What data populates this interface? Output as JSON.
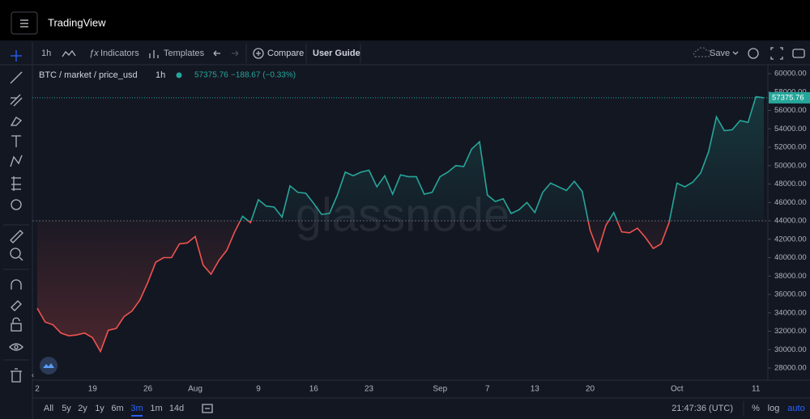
{
  "header": {
    "title": "TradingView"
  },
  "toolbar": {
    "interval": "1h",
    "indicators": "Indicators",
    "templates": "Templates",
    "compare": "Compare",
    "guide": "User Guide",
    "save": "Save"
  },
  "legend": {
    "symbol": "BTC / market / price_usd",
    "interval": "1h",
    "change": "−188.67 (−0.33%)"
  },
  "chart_data": {
    "type": "line",
    "watermark": "glassnode",
    "categories": [
      "2",
      null,
      null,
      null,
      null,
      null,
      null,
      "19",
      null,
      null,
      null,
      null,
      null,
      null,
      "26",
      null,
      null,
      null,
      null,
      null,
      "Aug",
      null,
      null,
      null,
      null,
      null,
      null,
      null,
      "9",
      null,
      null,
      null,
      null,
      null,
      null,
      "16",
      null,
      null,
      null,
      null,
      null,
      null,
      "23",
      null,
      null,
      null,
      null,
      null,
      null,
      null,
      null,
      "Sep",
      null,
      null,
      null,
      null,
      null,
      "7",
      null,
      null,
      null,
      null,
      null,
      "13",
      null,
      null,
      null,
      null,
      null,
      null,
      "20",
      null,
      null,
      null,
      null,
      null,
      null,
      null,
      null,
      null,
      null,
      "Oct",
      null,
      null,
      null,
      null,
      null,
      null,
      null,
      null,
      null,
      "11",
      null
    ],
    "values": [
      34500,
      33000,
      32700,
      31800,
      31500,
      31600,
      31800,
      31300,
      29800,
      32100,
      32300,
      33600,
      34200,
      35400,
      37300,
      39500,
      40000,
      40000,
      41500,
      41600,
      42300,
      39200,
      38200,
      39700,
      40800,
      42800,
      44500,
      43800,
      46300,
      45600,
      45500,
      44400,
      47800,
      47100,
      47000,
      45900,
      44700,
      44800,
      46800,
      49300,
      48900,
      49300,
      49500,
      47700,
      48900,
      46900,
      49000,
      48800,
      48800,
      46900,
      47100,
      48800,
      49300,
      50000,
      49900,
      51800,
      52600,
      46800,
      46100,
      46400,
      44800,
      45200,
      46000,
      44900,
      47100,
      48100,
      47700,
      47300,
      48300,
      47200,
      43000,
      40700,
      43500,
      44900,
      42800,
      42700,
      43200,
      42200,
      41000,
      41500,
      43800,
      48100,
      47700,
      48200,
      49200,
      51500,
      55300,
      53800,
      53900,
      54900,
      54700,
      57500,
      57375.76
    ],
    "baseline": 44000,
    "color_above": "#26a69a",
    "color_below": "#ef5350",
    "grid": false,
    "ylim": [
      26680,
      60970
    ],
    "yticks": [
      {
        "value": 28000,
        "label": "28000.00"
      },
      {
        "value": 30000,
        "label": "30000.00"
      },
      {
        "value": 32000,
        "label": "32000.00"
      },
      {
        "value": 34000,
        "label": "34000.00"
      },
      {
        "value": 36000,
        "label": "36000.00"
      },
      {
        "value": 38000,
        "label": "38000.00"
      },
      {
        "value": 40000,
        "label": "40000.00"
      },
      {
        "value": 42000,
        "label": "42000.00"
      },
      {
        "value": 44000,
        "label": "44000.00"
      },
      {
        "value": 46000,
        "label": "46000.00"
      },
      {
        "value": 48000,
        "label": "48000.00"
      },
      {
        "value": 50000,
        "label": "50000.00"
      },
      {
        "value": 52000,
        "label": "52000.00"
      },
      {
        "value": 54000,
        "label": "54000.00"
      },
      {
        "value": 56000,
        "label": "56000.00"
      },
      {
        "value": 58000,
        "label": "58000.00"
      },
      {
        "value": 60000,
        "label": "60000.00"
      }
    ]
  },
  "bottom_bar": {
    "ranges": [
      "All",
      "5y",
      "2y",
      "1y",
      "6m",
      "3m",
      "1m",
      "14d"
    ],
    "active": "3m",
    "clock": "21:47:36 (UTC)",
    "percent": "%",
    "log": "log",
    "auto": "auto"
  }
}
